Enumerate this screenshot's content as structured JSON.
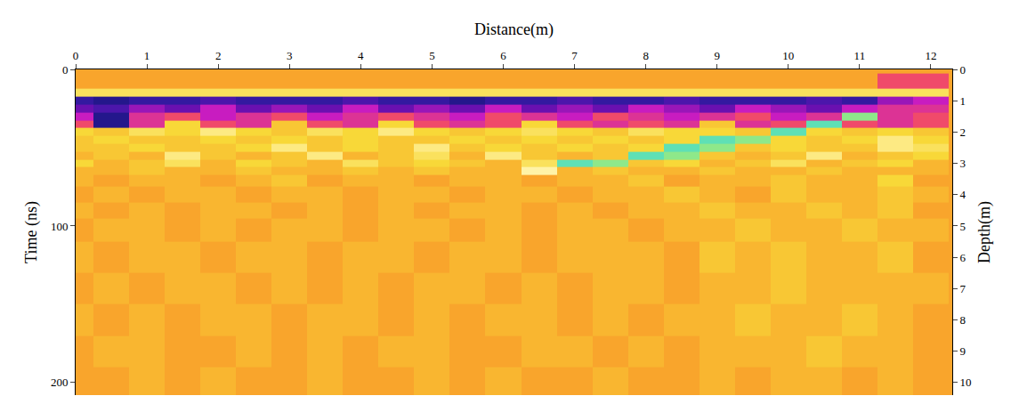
{
  "chart_data": {
    "type": "heatmap",
    "x_label": "Distance(m)",
    "y_label": "Time (ns)",
    "y2_label": "Depth(m)",
    "x": [
      0,
      0.5,
      1,
      1.5,
      2,
      2.5,
      3,
      3.5,
      4,
      4.5,
      5,
      5.5,
      6,
      6.5,
      7,
      7.5,
      8,
      8.5,
      9,
      9.5,
      10,
      10.5,
      11,
      11.5,
      12
    ],
    "y": [
      0,
      5,
      10,
      15,
      20,
      25,
      30,
      35,
      40,
      45,
      50,
      55,
      60,
      65,
      70,
      80,
      90,
      100,
      120,
      140,
      160,
      180,
      200
    ],
    "cells": [
      [
        0,
        0,
        0,
        0,
        0,
        0,
        0,
        0,
        0,
        0,
        0,
        0,
        0,
        0,
        0,
        0,
        0,
        0,
        0,
        0,
        0,
        0,
        0,
        0,
        0
      ],
      [
        0,
        0,
        0,
        0,
        0,
        0,
        0,
        0,
        0,
        0,
        0,
        0,
        0,
        0,
        0,
        0,
        0,
        0,
        0,
        0,
        0,
        0,
        0,
        -2,
        -2
      ],
      [
        0,
        0,
        0,
        0,
        0,
        0,
        0,
        0,
        0,
        0,
        0,
        0,
        0,
        0,
        0,
        0,
        0,
        0,
        0,
        0,
        0,
        0,
        0,
        -2,
        -2
      ],
      [
        4,
        4,
        4,
        4,
        4,
        4,
        4,
        4,
        4,
        4,
        4,
        4,
        4,
        4,
        4,
        4,
        4,
        4,
        4,
        4,
        4,
        4,
        4,
        4,
        4
      ],
      [
        -8,
        -9,
        -8,
        -8,
        -7,
        -8,
        -8,
        -8,
        -7,
        -8,
        -8,
        -9,
        -8,
        -8,
        -7,
        -8,
        -8,
        -7,
        -8,
        -8,
        -8,
        -7,
        -8,
        -5,
        -4
      ],
      [
        -6,
        -7,
        -5,
        -6,
        -4,
        -6,
        -5,
        -6,
        -4,
        -6,
        -5,
        -6,
        -4,
        -6,
        -5,
        -6,
        -4,
        -5,
        -6,
        -4,
        -5,
        -6,
        -4,
        -3,
        -3
      ],
      [
        -4,
        -9,
        -3,
        -2,
        -4,
        -3,
        -2,
        -4,
        -3,
        -2,
        -3,
        -4,
        -2,
        -3,
        -4,
        -2,
        -3,
        -4,
        -3,
        -2,
        -4,
        -3,
        8,
        -3,
        -2
      ],
      [
        -2,
        -9,
        -3,
        3,
        -2,
        -3,
        2,
        -2,
        -3,
        3,
        -2,
        -3,
        -2,
        3,
        -2,
        -3,
        -2,
        -3,
        2,
        -3,
        -2,
        9,
        -2,
        -3,
        -2
      ],
      [
        3,
        2,
        4,
        3,
        5,
        3,
        2,
        4,
        3,
        5,
        3,
        2,
        3,
        4,
        3,
        2,
        4,
        3,
        3,
        2,
        9,
        3,
        2,
        3,
        2
      ],
      [
        2,
        3,
        2,
        2,
        3,
        2,
        3,
        2,
        3,
        2,
        2,
        3,
        2,
        3,
        2,
        3,
        2,
        3,
        9,
        8,
        3,
        2,
        3,
        5,
        3
      ],
      [
        2,
        2,
        3,
        2,
        2,
        3,
        5,
        2,
        3,
        2,
        5,
        2,
        3,
        2,
        3,
        2,
        3,
        9,
        8,
        2,
        3,
        2,
        2,
        5,
        4
      ],
      [
        1,
        2,
        1,
        5,
        2,
        1,
        2,
        5,
        1,
        2,
        4,
        1,
        5,
        2,
        1,
        2,
        9,
        8,
        2,
        1,
        2,
        5,
        1,
        2,
        3
      ],
      [
        3,
        1,
        2,
        4,
        1,
        3,
        2,
        1,
        4,
        2,
        3,
        2,
        1,
        4,
        9,
        8,
        2,
        3,
        1,
        2,
        4,
        1,
        2,
        3,
        1
      ],
      [
        1,
        1,
        2,
        1,
        1,
        2,
        1,
        1,
        2,
        1,
        2,
        1,
        1,
        6,
        1,
        2,
        1,
        1,
        2,
        1,
        1,
        2,
        1,
        1,
        1
      ],
      [
        1,
        0,
        1,
        1,
        0,
        1,
        2,
        0,
        1,
        1,
        0,
        1,
        1,
        0,
        1,
        1,
        2,
        0,
        1,
        1,
        2,
        1,
        1,
        3,
        0
      ],
      [
        0,
        1,
        0,
        1,
        1,
        0,
        1,
        1,
        0,
        1,
        1,
        0,
        1,
        1,
        0,
        1,
        1,
        2,
        1,
        0,
        2,
        1,
        1,
        2,
        1
      ],
      [
        1,
        0,
        1,
        0,
        1,
        1,
        0,
        1,
        0,
        1,
        0,
        1,
        1,
        0,
        1,
        0,
        1,
        1,
        2,
        1,
        1,
        2,
        1,
        2,
        0
      ],
      [
        0,
        1,
        1,
        0,
        1,
        0,
        1,
        1,
        0,
        1,
        1,
        0,
        1,
        0,
        1,
        1,
        0,
        1,
        1,
        2,
        1,
        1,
        2,
        1,
        1
      ],
      [
        1,
        0,
        1,
        1,
        0,
        1,
        1,
        0,
        1,
        1,
        0,
        1,
        1,
        0,
        1,
        1,
        1,
        0,
        2,
        1,
        2,
        1,
        1,
        2,
        0
      ],
      [
        0,
        1,
        0,
        1,
        1,
        0,
        1,
        0,
        1,
        0,
        1,
        1,
        0,
        1,
        0,
        1,
        1,
        0,
        1,
        1,
        2,
        1,
        1,
        1,
        1
      ],
      [
        1,
        0,
        1,
        0,
        1,
        1,
        0,
        1,
        1,
        0,
        1,
        0,
        1,
        1,
        0,
        1,
        0,
        1,
        1,
        2,
        1,
        1,
        2,
        1,
        0
      ],
      [
        0,
        1,
        1,
        0,
        0,
        1,
        0,
        1,
        0,
        1,
        1,
        0,
        0,
        1,
        1,
        0,
        1,
        0,
        1,
        1,
        1,
        2,
        1,
        1,
        0
      ],
      [
        0,
        0,
        1,
        0,
        1,
        0,
        0,
        1,
        0,
        0,
        1,
        0,
        1,
        0,
        0,
        1,
        0,
        0,
        1,
        0,
        1,
        1,
        0,
        1,
        0
      ]
    ],
    "zlim": [
      -10,
      10
    ],
    "xlim": [
      0,
      12.3
    ],
    "xticks": [
      0,
      1,
      2,
      3,
      4,
      5,
      6,
      7,
      8,
      9,
      10,
      11,
      12
    ],
    "ylim": [
      0,
      208
    ],
    "yticks": [
      0,
      100,
      200
    ],
    "y2lim": [
      0,
      10.4
    ],
    "y2ticks": [
      0,
      1,
      2,
      3,
      4,
      5,
      6,
      7,
      8,
      9,
      10
    ],
    "grid": false
  }
}
